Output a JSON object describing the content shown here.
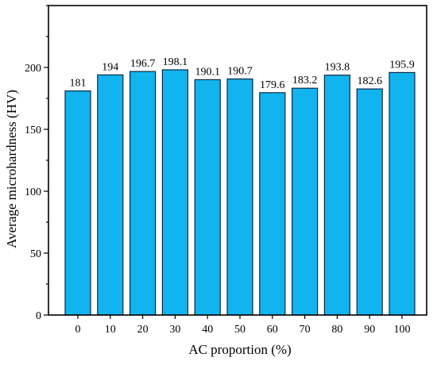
{
  "chart_data": {
    "type": "bar",
    "categories": [
      "0",
      "10",
      "20",
      "30",
      "40",
      "50",
      "60",
      "70",
      "80",
      "90",
      "100"
    ],
    "values": [
      181,
      194,
      196.7,
      198.1,
      190.1,
      190.7,
      179.6,
      183.2,
      193.8,
      182.6,
      195.9
    ],
    "value_labels": [
      "181",
      "194",
      "196.7",
      "198.1",
      "190.1",
      "190.7",
      "179.6",
      "183.2",
      "193.8",
      "182.6",
      "195.9"
    ],
    "xlabel": "AC proportion (%)",
    "ylabel": "Average microhardness (HV)",
    "ylim": [
      0,
      250
    ],
    "yticks": [
      0,
      50,
      100,
      150,
      200
    ],
    "grid": false,
    "bar_color": "#12b4f0",
    "bar_edge_color": "#0a2a44"
  }
}
